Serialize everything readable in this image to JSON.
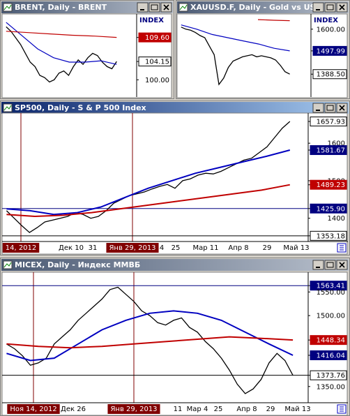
{
  "windows": [
    {
      "title": "BRENT, Daily - BRENT",
      "active": false,
      "header": "INDEX",
      "ylim": [
        96.1,
        114.6
      ],
      "price_labels": [
        {
          "value": 109.6,
          "label": "109.60",
          "color": "#c00000"
        },
        {
          "value": 104.15,
          "label": "104.15",
          "color": "#ffffff"
        },
        {
          "value": 100,
          "label": "100.00"
        }
      ],
      "series": [
        {
          "color": "#000000",
          "values": [
            112,
            111,
            109.5,
            108,
            106,
            104,
            103,
            101,
            100.5,
            99.5,
            100,
            101.5,
            102,
            101,
            103,
            104.5,
            103.5,
            105,
            106,
            105.5,
            104,
            103,
            102.5,
            104.15
          ]
        },
        {
          "color": "#0000c0",
          "values": [
            113,
            110,
            107,
            105,
            104,
            104,
            104.3,
            103.5
          ]
        },
        {
          "color": "#c00000",
          "values": [
            111,
            110.7,
            110.4,
            110.1,
            109.9,
            109.6
          ]
        }
      ],
      "date_labels": [],
      "cursor_dates": []
    },
    {
      "title": "XAUUSD.F, Daily - Gold vs US",
      "active": false,
      "header": "INDEX",
      "ylim": [
        1281,
        1665
      ],
      "price_labels": [
        {
          "value": 1600,
          "label": "1600.00"
        },
        {
          "value": 1497.99,
          "label": "1497.99",
          "color": "#000080"
        },
        {
          "value": 1388.5,
          "label": "1388.50",
          "color": "#ffffff"
        }
      ],
      "series": [
        {
          "color": "#000000",
          "values": [
            1610,
            1600,
            1595,
            1585,
            1570,
            1560,
            1520,
            1480,
            1340,
            1370,
            1420,
            1450,
            1460,
            1470,
            1475,
            1480,
            1470,
            1475,
            1470,
            1465,
            1455,
            1430,
            1400,
            1388.5
          ]
        },
        {
          "color": "#0000c0",
          "values": [
            1620,
            1600,
            1575,
            1560,
            1545,
            1530,
            1510,
            1497.99
          ]
        },
        {
          "color": "#c00000",
          "values": [
            1645,
            1642,
            1640
          ]
        }
      ],
      "date_labels": [],
      "cursor_dates": []
    },
    {
      "title": "SP500, Daily - S & P 500 Index",
      "active": true,
      "ylim": [
        1338,
        1676.6
      ],
      "price_labels": [
        {
          "value": 1657.93,
          "label": "1657.93",
          "color": "#ffffff"
        },
        1600,
        {
          "value": 1581.67,
          "label": "1581.67",
          "color": "#000080"
        },
        1500,
        {
          "value": 1489.23,
          "label": "1489.23",
          "color": "#c00000"
        },
        {
          "value": 1425.9,
          "label": "1425.90",
          "color": "#000080",
          "line": true
        },
        1400,
        {
          "value": 1353.18,
          "label": "1353.18",
          "color": "#ffffff",
          "line": true
        }
      ],
      "series": [
        {
          "color": "#000000",
          "values": [
            1420,
            1400,
            1380,
            1362,
            1375,
            1390,
            1395,
            1400,
            1405,
            1415,
            1410,
            1400,
            1405,
            1420,
            1440,
            1450,
            1460,
            1465,
            1470,
            1478,
            1485,
            1490,
            1480,
            1500,
            1505,
            1515,
            1520,
            1518,
            1525,
            1535,
            1545,
            1555,
            1560,
            1575,
            1590,
            1615,
            1640,
            1657.93
          ]
        },
        {
          "color": "#0000c0",
          "values": [
            1425,
            1420,
            1410,
            1415,
            1430,
            1455,
            1480,
            1500,
            1520,
            1535,
            1550,
            1565,
            1581.67
          ]
        },
        {
          "color": "#c00000",
          "values": [
            1410,
            1405,
            1408,
            1415,
            1425,
            1435,
            1445,
            1455,
            1465,
            1475,
            1489.23
          ]
        }
      ],
      "date_labels": [
        "Дек 10",
        "31",
        "4",
        "25",
        "Мар 11",
        "Апр 8",
        "29",
        "Май 13"
      ],
      "cursor_dates": [
        "14, 2012",
        "Янв 29, 2013"
      ]
    },
    {
      "title": "MICEX, Daily - Индекс ММВБ",
      "active": false,
      "ylim": [
        1315.7,
        1588.8
      ],
      "price_labels": [
        {
          "value": 1563.41,
          "label": "1563.41",
          "color": "#000080",
          "line": true
        },
        {
          "value": 1550,
          "label": "1550.00"
        },
        {
          "value": 1500,
          "label": "1500.00"
        },
        {
          "value": 1448.34,
          "label": "1448.34",
          "color": "#c00000"
        },
        {
          "value": 1416.04,
          "label": "1416.04",
          "color": "#000080"
        },
        {
          "value": 1373.76,
          "label": "1373.76",
          "color": "#ffffff",
          "line": true
        },
        {
          "value": 1350,
          "label": "1350.00"
        }
      ],
      "series": [
        {
          "color": "#000000",
          "values": [
            1440,
            1430,
            1415,
            1395,
            1400,
            1410,
            1440,
            1455,
            1470,
            1490,
            1505,
            1520,
            1535,
            1555,
            1560,
            1545,
            1530,
            1510,
            1500,
            1485,
            1480,
            1490,
            1495,
            1475,
            1465,
            1445,
            1430,
            1410,
            1385,
            1355,
            1335,
            1345,
            1365,
            1400,
            1420,
            1405,
            1373.76
          ]
        },
        {
          "color": "#0000c0",
          "values": [
            1420,
            1405,
            1410,
            1440,
            1470,
            1490,
            1505,
            1510,
            1505,
            1490,
            1465,
            1440,
            1416.04
          ]
        },
        {
          "color": "#c00000",
          "values": [
            1440,
            1435,
            1432,
            1435,
            1440,
            1445,
            1450,
            1455,
            1452,
            1448.34
          ]
        }
      ],
      "date_labels": [
        "Дек 26",
        "11",
        "Мар 4",
        "25",
        "Апр 8",
        "29",
        "Май 13"
      ],
      "cursor_dates": [
        "Ноя 14, 2012",
        "Янв 29, 2013"
      ]
    }
  ]
}
